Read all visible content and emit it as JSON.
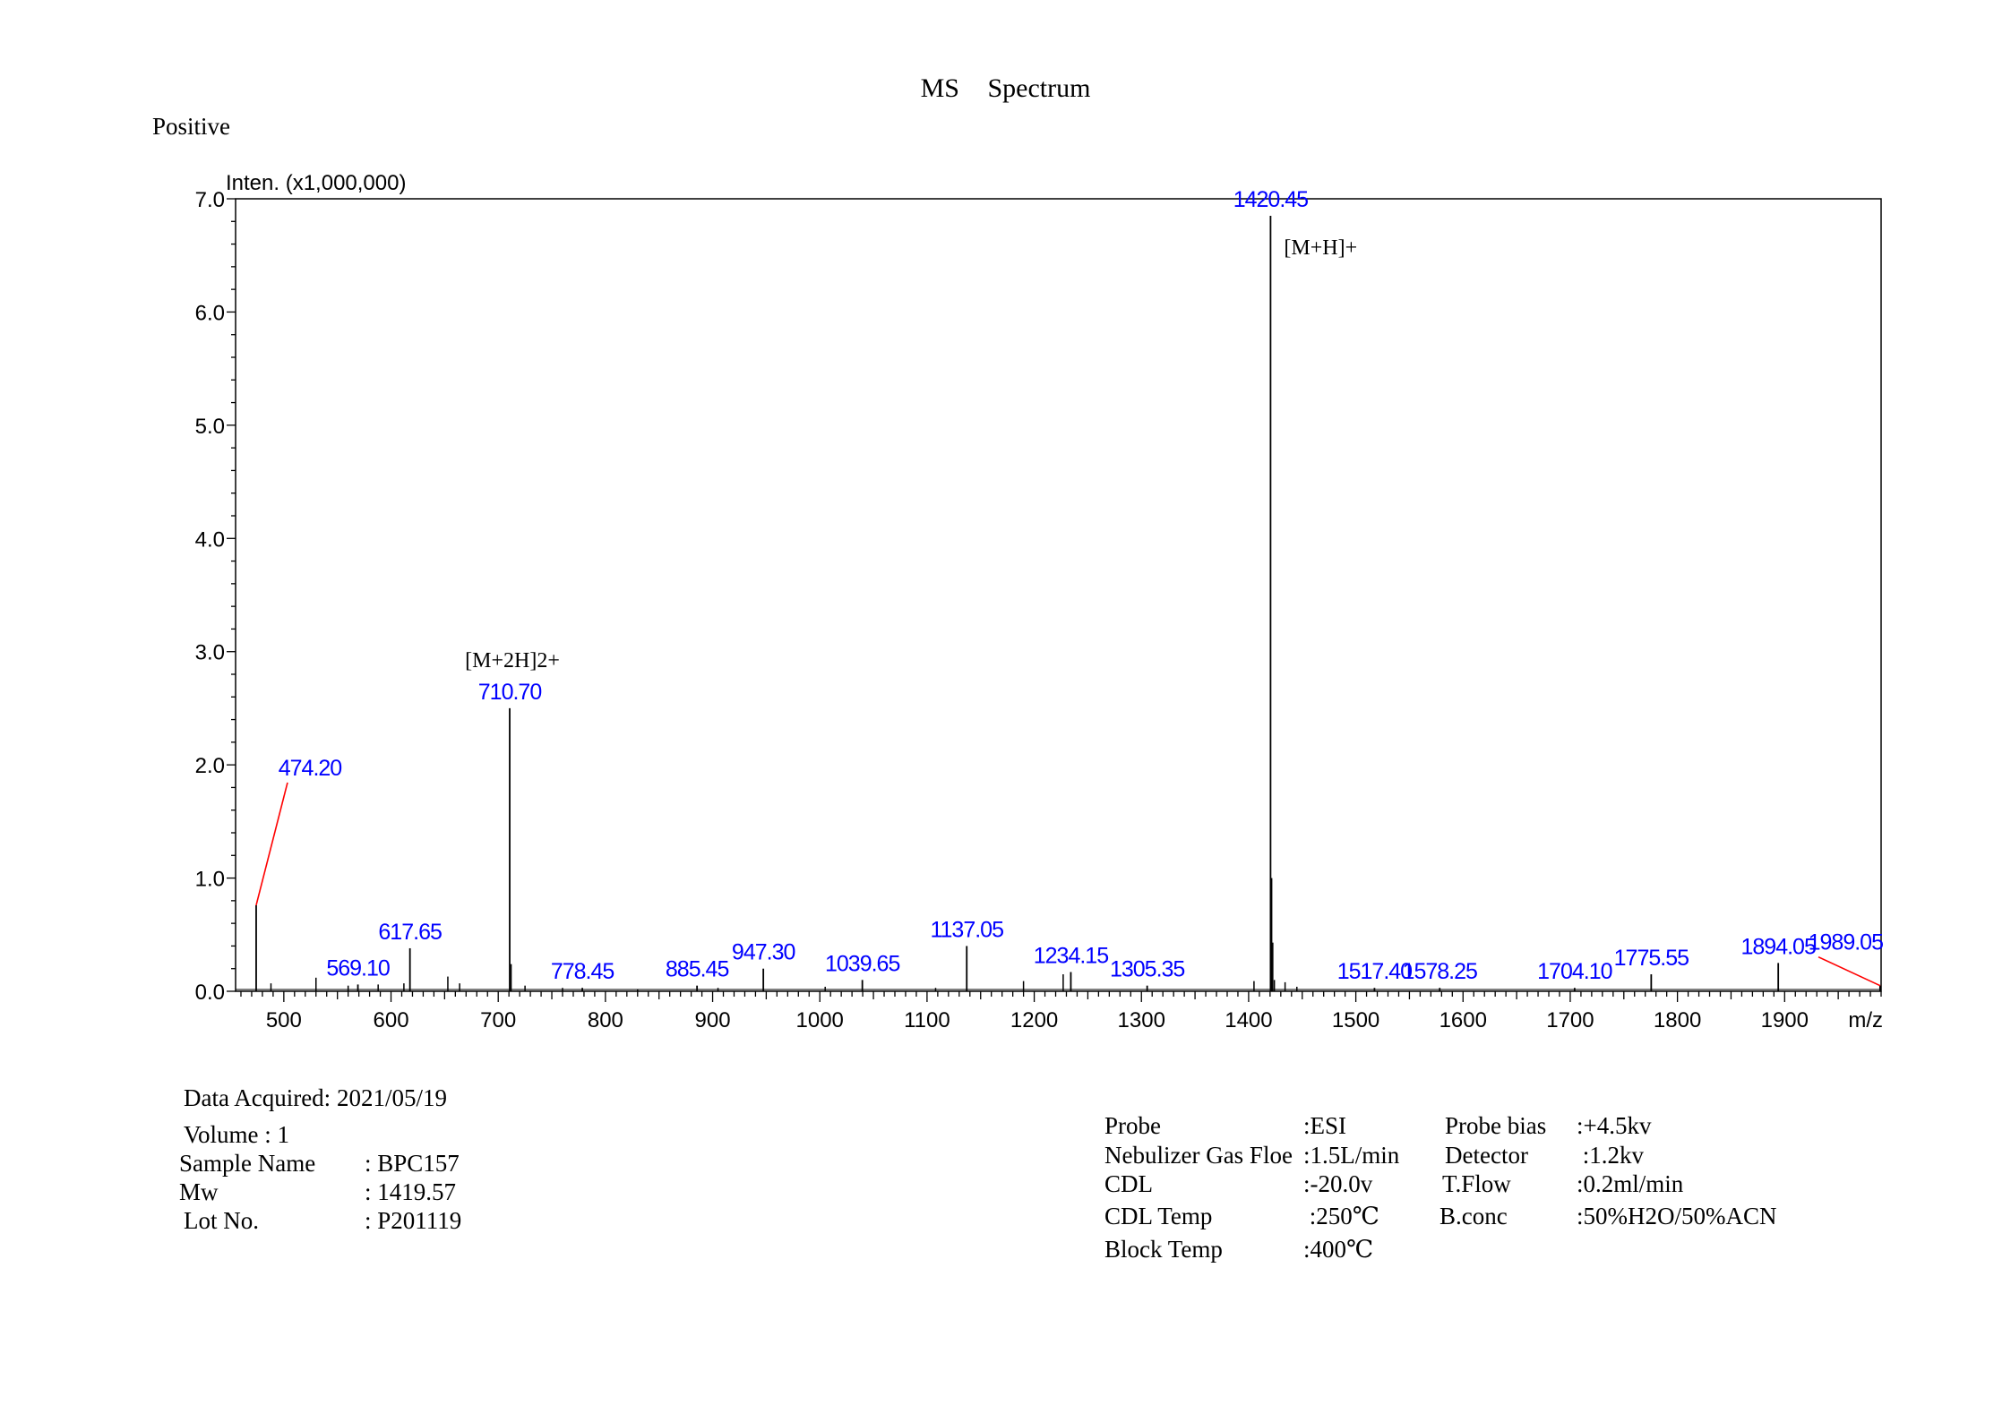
{
  "header": {
    "title": "MS Spectrum",
    "polarity": "Positive"
  },
  "chart_data": {
    "type": "bar",
    "title": "MS Spectrum",
    "ylabel": "Inten. (x1,000,000)",
    "xlabel": "m/z",
    "xlim": [
      455,
      1990
    ],
    "ylim": [
      0,
      7.0
    ],
    "x_ticks": [
      "500",
      "600",
      "700",
      "800",
      "900",
      "1000",
      "1100",
      "1200",
      "1300",
      "1400",
      "1500",
      "1600",
      "1700",
      "1800",
      "1900"
    ],
    "y_ticks": [
      "0.0",
      "1.0",
      "2.0",
      "3.0",
      "4.0",
      "5.0",
      "6.0",
      "7.0"
    ],
    "label_color": "#0000ff",
    "leader_color": "#ff0000",
    "labeled_peaks": [
      {
        "x": 474.2,
        "y": 0.76,
        "label": "474.20"
      },
      {
        "x": 569.1,
        "y": 0.06,
        "label": "569.10"
      },
      {
        "x": 617.65,
        "y": 0.38,
        "label": "617.65"
      },
      {
        "x": 710.7,
        "y": 2.5,
        "label": "710.70"
      },
      {
        "x": 778.45,
        "y": 0.03,
        "label": "778.45"
      },
      {
        "x": 885.45,
        "y": 0.05,
        "label": "885.45"
      },
      {
        "x": 947.3,
        "y": 0.2,
        "label": "947.30"
      },
      {
        "x": 1039.65,
        "y": 0.1,
        "label": "1039.65"
      },
      {
        "x": 1137.05,
        "y": 0.4,
        "label": "1137.05"
      },
      {
        "x": 1234.15,
        "y": 0.17,
        "label": "1234.15"
      },
      {
        "x": 1305.35,
        "y": 0.05,
        "label": "1305.35"
      },
      {
        "x": 1420.45,
        "y": 6.85,
        "label": "1420.45"
      },
      {
        "x": 1517.4,
        "y": 0.03,
        "label": "1517.40"
      },
      {
        "x": 1578.25,
        "y": 0.03,
        "label": "1578.25"
      },
      {
        "x": 1704.1,
        "y": 0.03,
        "label": "1704.10"
      },
      {
        "x": 1775.55,
        "y": 0.15,
        "label": "1775.55"
      },
      {
        "x": 1894.05,
        "y": 0.25,
        "label": "1894.05"
      },
      {
        "x": 1989.05,
        "y": 0.05,
        "label": "1989.05"
      }
    ],
    "minor_peaks": [
      {
        "x": 488,
        "y": 0.07
      },
      {
        "x": 530,
        "y": 0.12
      },
      {
        "x": 560,
        "y": 0.05
      },
      {
        "x": 588,
        "y": 0.06
      },
      {
        "x": 612,
        "y": 0.07
      },
      {
        "x": 653,
        "y": 0.13
      },
      {
        "x": 664,
        "y": 0.07
      },
      {
        "x": 712,
        "y": 0.24
      },
      {
        "x": 725,
        "y": 0.05
      },
      {
        "x": 760,
        "y": 0.03
      },
      {
        "x": 830,
        "y": 0.02
      },
      {
        "x": 905,
        "y": 0.03
      },
      {
        "x": 1005,
        "y": 0.04
      },
      {
        "x": 1108,
        "y": 0.03
      },
      {
        "x": 1190,
        "y": 0.09
      },
      {
        "x": 1227,
        "y": 0.15
      },
      {
        "x": 1405,
        "y": 0.09
      },
      {
        "x": 1421.5,
        "y": 1.0
      },
      {
        "x": 1422.5,
        "y": 0.43
      },
      {
        "x": 1424,
        "y": 0.1
      },
      {
        "x": 1434,
        "y": 0.08
      },
      {
        "x": 1445,
        "y": 0.04
      }
    ],
    "annotations": [
      {
        "text": "[M+H]+",
        "x": 1420.45
      },
      {
        "text": "[M+2H]2+",
        "x": 710.7
      }
    ]
  },
  "sample_info": {
    "data_acquired": "Data Acquired: 2021/05/19",
    "volume": "Volume : 1",
    "rows": [
      {
        "label": "Sample Name",
        "value": ": BPC157"
      },
      {
        "label": "Mw",
        "value": ": 1419.57"
      },
      {
        "label": "Lot No.",
        "value": ": P201119"
      }
    ]
  },
  "conditions": {
    "rows": [
      {
        "k1": "Probe",
        "v1": ":ESI",
        "k2": "Probe bias",
        "v2": ":+4.5kv"
      },
      {
        "k1": "Nebulizer Gas Floe",
        "v1": ":1.5L/min",
        "k2": "Detector",
        "v2": " :1.2kv"
      },
      {
        "k1": "CDL",
        "v1": ":-20.0v",
        "k2": "T.Flow",
        "v2": ":0.2ml/min"
      },
      {
        "k1": "CDL Temp",
        "v1": " :250℃",
        "k2": "B.conc",
        "v2": ":50%H2O/50%ACN"
      },
      {
        "k1": "Block Temp",
        "v1": ":400℃",
        "k2": "",
        "v2": ""
      }
    ]
  }
}
